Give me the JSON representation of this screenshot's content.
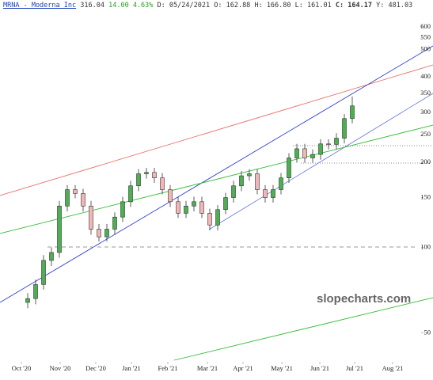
{
  "chart_data": {
    "type": "candlestick",
    "header": {
      "symbol": "MRNA - Moderna Inc",
      "last": "316.04",
      "change": "14.00",
      "change_pct": "4.63%",
      "fields": [
        {
          "label": "D:",
          "value": "05/24/2021"
        },
        {
          "label": "O:",
          "value": "162.88"
        },
        {
          "label": "H:",
          "value": "166.80"
        },
        {
          "label": "L:",
          "value": "161.01"
        },
        {
          "label": "C:",
          "value": "164.17"
        },
        {
          "label": "Y:",
          "value": "481.03"
        }
      ]
    },
    "watermark": "slopecharts.com",
    "up_color": "#4caf50",
    "down_color": "#f2b6b6",
    "open": [
      64,
      66,
      74,
      90,
      96,
      140,
      160,
      155,
      140,
      116,
      109,
      116,
      128,
      145,
      165,
      182,
      184,
      176,
      160,
      145,
      132,
      140,
      145,
      132,
      120,
      136,
      150,
      165,
      179,
      182,
      160,
      150,
      160,
      176,
      207,
      223,
      207,
      213,
      232,
      231,
      243,
      285
    ],
    "high": [
      69,
      77,
      94,
      100,
      146,
      166,
      166,
      161,
      146,
      121,
      121,
      133,
      151,
      172,
      189,
      191,
      191,
      183,
      166,
      151,
      146,
      151,
      151,
      137,
      141,
      156,
      172,
      186,
      189,
      189,
      166,
      166,
      183,
      215,
      232,
      232,
      222,
      241,
      241,
      253,
      296,
      341
    ],
    "low": [
      61,
      63,
      71,
      86,
      92,
      134,
      149,
      134,
      111,
      105,
      105,
      111,
      123,
      139,
      158,
      175,
      169,
      154,
      139,
      127,
      127,
      134,
      127,
      115,
      115,
      131,
      144,
      158,
      172,
      154,
      144,
      144,
      154,
      169,
      199,
      199,
      199,
      204,
      222,
      222,
      233,
      274
    ],
    "close": [
      66,
      74,
      90,
      96,
      140,
      160,
      155,
      140,
      116,
      109,
      116,
      128,
      145,
      165,
      182,
      184,
      176,
      160,
      145,
      132,
      140,
      145,
      132,
      120,
      136,
      150,
      165,
      179,
      182,
      160,
      150,
      160,
      176,
      207,
      223,
      207,
      213,
      232,
      231,
      243,
      285,
      316
    ],
    "log_scale": true,
    "ylim": [
      40,
      747
    ],
    "yticks": [
      600,
      550,
      500,
      400,
      350,
      300,
      250,
      200,
      150,
      100,
      50
    ],
    "xlim": [
      -3.5,
      49.5
    ],
    "xticks": [
      {
        "value": -0.8,
        "label": "Oct '20"
      },
      {
        "value": 4.1,
        "label": "Nov '20"
      },
      {
        "value": 8.6,
        "label": "Dec '20"
      },
      {
        "value": 13.1,
        "label": "Jan '21"
      },
      {
        "value": 17.7,
        "label": "Feb '21"
      },
      {
        "value": 22.7,
        "label": "Mar '21"
      },
      {
        "value": 27.2,
        "label": "Apr '21"
      },
      {
        "value": 32.1,
        "label": "May '21"
      },
      {
        "value": 36.9,
        "label": "Jun '21"
      },
      {
        "value": 41.3,
        "label": "Jul '21"
      },
      {
        "value": 46.1,
        "label": "Aug '21"
      }
    ]
  }
}
